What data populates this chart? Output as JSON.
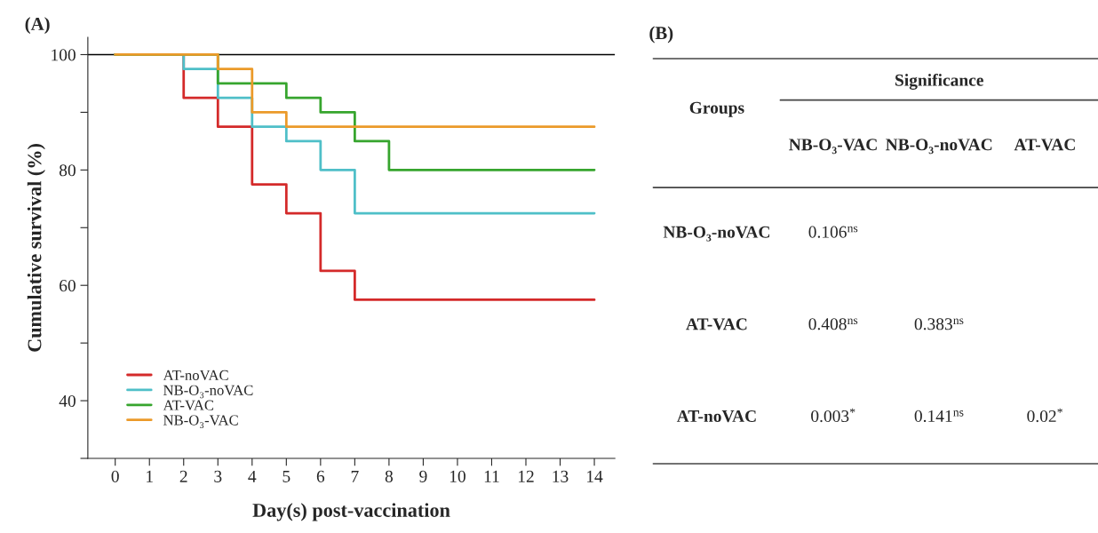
{
  "chart_data": [
    {
      "type": "step",
      "title": "(A)",
      "xlabel": "Day(s) post-vaccination",
      "ylabel": "Cumulative survival (%)",
      "series": [
        {
          "name": "AT-noVAC",
          "color": "#d42a2a",
          "x": [
            0,
            2,
            3,
            4,
            5,
            6,
            7,
            14
          ],
          "values": [
            100,
            92.5,
            87.5,
            77.5,
            72.5,
            62.5,
            57.5,
            57.5
          ]
        },
        {
          "name": "NB-O₃-noVAC",
          "color": "#4fbfc8",
          "x": [
            0,
            2,
            3,
            4,
            5,
            6,
            7,
            14
          ],
          "values": [
            100,
            97.5,
            92.5,
            87.5,
            85,
            80,
            72.5,
            72.5
          ]
        },
        {
          "name": "AT-VAC",
          "color": "#37a52e",
          "x": [
            0,
            3,
            5,
            6,
            7,
            8,
            14
          ],
          "values": [
            100,
            95,
            92.5,
            90,
            85,
            80,
            80
          ]
        },
        {
          "name": "NB-O₃-VAC",
          "color": "#eb9a2a",
          "x": [
            0,
            3,
            4,
            5,
            14
          ],
          "values": [
            100,
            97.5,
            90,
            87.5,
            87.5
          ]
        }
      ],
      "xlim": [
        -0.8,
        14.6
      ],
      "xticks": [
        0,
        1,
        2,
        3,
        4,
        5,
        6,
        7,
        8,
        9,
        10,
        11,
        12,
        13,
        14
      ],
      "ylim": [
        30,
        103
      ],
      "yticks": [
        {
          "value": 30,
          "label": null
        },
        40,
        {
          "value": 50,
          "label": null
        },
        60,
        {
          "value": 70,
          "label": null
        },
        80,
        {
          "value": 90,
          "label": null
        },
        100
      ],
      "ref_lines": [
        {
          "axis": "y",
          "value": 100,
          "color": "#000000"
        }
      ],
      "legend": "bottom left",
      "grid": false
    },
    {
      "type": "heatmap",
      "title": "(B)",
      "xlabel": "Significance",
      "ylabel": "Groups",
      "categories": [
        "NB-O₃-VAC",
        "NB-O₃-noVAC",
        "AT-VAC"
      ],
      "y_categories": [
        "NB-O₃-noVAC",
        "AT-VAC",
        "AT-noVAC"
      ],
      "cells": [
        [
          0.106,
          null,
          null
        ],
        [
          0.408,
          0.383,
          null
        ],
        [
          0.003,
          0.141,
          0.02
        ]
      ],
      "cell_labels": [
        [
          "0.106$^{ns}$",
          null,
          null
        ],
        [
          "0.408$^{ns}$",
          "0.383$^{ns}$",
          null
        ],
        [
          "0.003$^{*}$",
          "0.141$^{ns}$",
          "0.02$^{*}$"
        ]
      ]
    }
  ]
}
